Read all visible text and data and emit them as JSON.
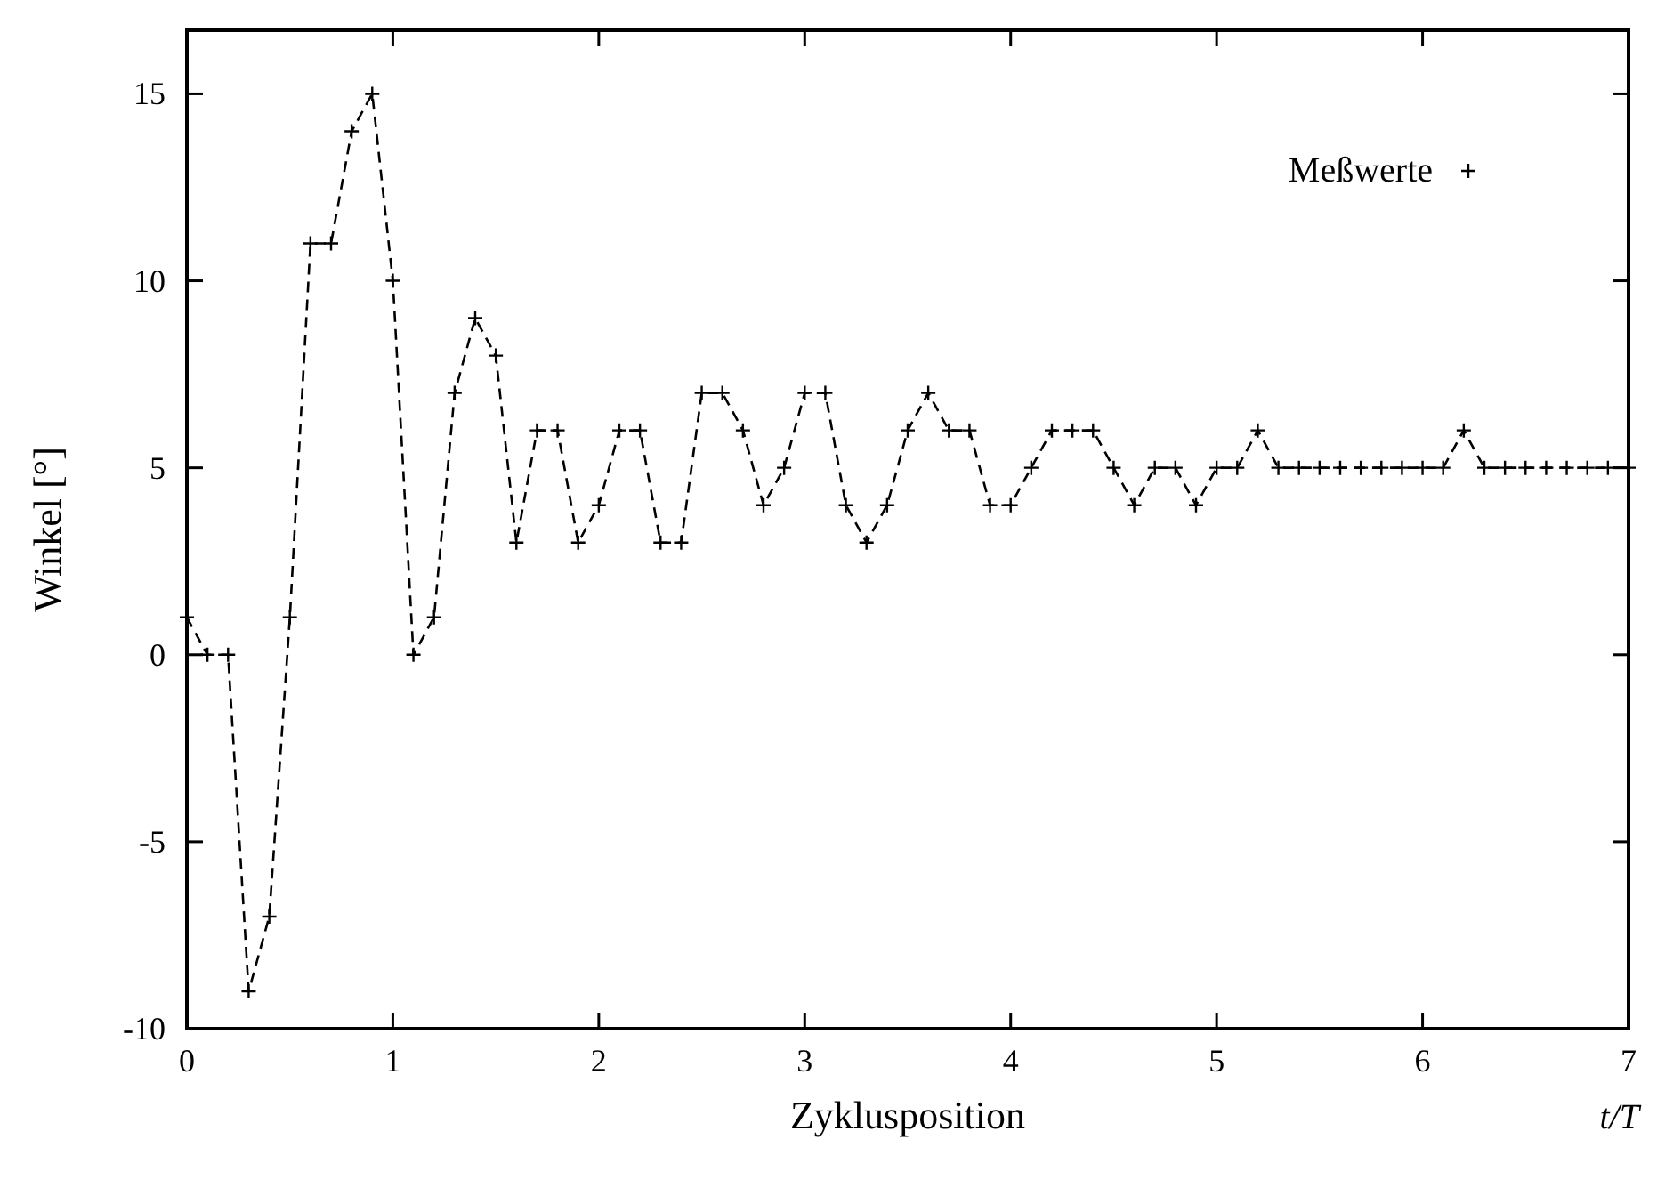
{
  "chart_data": {
    "type": "line",
    "xlabel": "Zyklusposition",
    "ylabel": "Winkel [°]",
    "annotations": [
      "t/T"
    ],
    "x": [
      0,
      0.1,
      0.2,
      0.3,
      0.4,
      0.5,
      0.6,
      0.7,
      0.8,
      0.9,
      1.0,
      1.1,
      1.2,
      1.3,
      1.4,
      1.5,
      1.6,
      1.7,
      1.8,
      1.9,
      2.0,
      2.1,
      2.2,
      2.3,
      2.4,
      2.5,
      2.6,
      2.7,
      2.8,
      2.9,
      3.0,
      3.1,
      3.2,
      3.3,
      3.4,
      3.5,
      3.6,
      3.7,
      3.8,
      3.9,
      4.0,
      4.1,
      4.2,
      4.3,
      4.4,
      4.5,
      4.6,
      4.7,
      4.8,
      4.9,
      5.0,
      5.1,
      5.2,
      5.3,
      5.4,
      5.5,
      5.6,
      5.7,
      5.8,
      5.9,
      6.0,
      6.1,
      6.2,
      6.3,
      6.4,
      6.5,
      6.6,
      6.7,
      6.8,
      6.9,
      7.0
    ],
    "series": [
      {
        "name": "Meßwerte",
        "color": "#000000",
        "values": [
          1,
          0,
          0,
          -9,
          -7,
          1,
          11,
          11,
          14,
          15,
          10,
          0,
          1,
          7,
          9,
          8,
          3,
          6,
          6,
          3,
          4,
          6,
          6,
          3,
          3,
          7,
          7,
          6,
          4,
          5,
          7,
          7,
          4,
          3,
          4,
          6,
          7,
          6,
          6,
          4,
          4,
          5,
          6,
          6,
          6,
          5,
          4,
          5,
          5,
          4,
          5,
          5,
          6,
          5,
          5,
          5,
          5,
          5,
          5,
          5,
          5,
          5,
          6,
          5,
          5,
          5,
          5,
          5,
          5,
          5,
          5
        ]
      }
    ],
    "xlim": [
      0,
      7
    ],
    "xticks": [
      0,
      1,
      2,
      3,
      4,
      5,
      6,
      7
    ],
    "ylim": [
      -10,
      16.7
    ],
    "yticks": [
      -10,
      -5,
      0,
      5,
      10,
      15
    ],
    "grid": false,
    "legend": "top right",
    "marker": "cross",
    "line_style": "dashed"
  }
}
